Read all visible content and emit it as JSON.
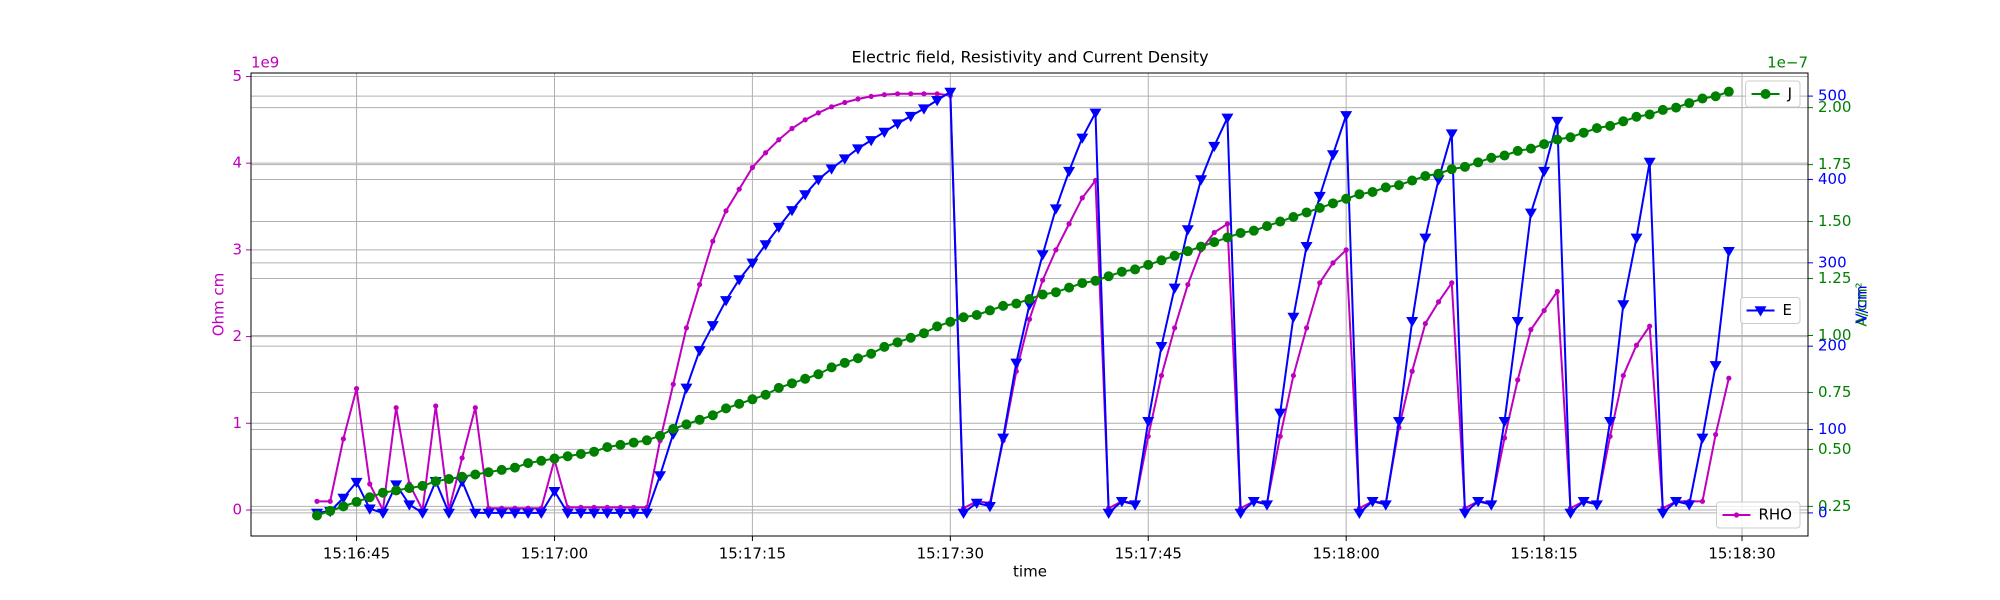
{
  "chart_data": {
    "type": "line",
    "title": "Electric field, Resistivity and Current Density",
    "xlabel": "time",
    "grid": true,
    "xlim": [
      "15:16:37",
      "15:18:35"
    ],
    "xticks": [
      "15:16:45",
      "15:17:00",
      "15:17:15",
      "15:17:30",
      "15:17:45",
      "15:18:00",
      "15:18:15",
      "15:18:30"
    ],
    "ylim": [
      -0.3,
      5.04
    ],
    "yticks": [
      0,
      1,
      2,
      3,
      4,
      5
    ],
    "ylabel": "Ohm cm",
    "y_offset_text": "1e9",
    "y2lim": [
      0.12,
      2.152
    ],
    "y2ticks": [
      0.25,
      {
        "value": 0.5,
        "label": "0.50"
      },
      0.75,
      {
        "value": 1,
        "label": "1.00"
      },
      1.25,
      {
        "value": 1.5,
        "label": "1.50"
      },
      1.75,
      {
        "value": 2,
        "label": "2.00"
      }
    ],
    "y2label": "A/cm²",
    "y2_offset_text": "1e−7",
    "y3lim": [
      -27.7,
      527.7
    ],
    "y3ticks": [
      0,
      100,
      200,
      300,
      400,
      500
    ],
    "y3label": "V/cm",
    "x": [
      "15:16:42",
      "15:16:43",
      "15:16:44",
      "15:16:45",
      "15:16:46",
      "15:16:47",
      "15:16:48",
      "15:16:49",
      "15:16:50",
      "15:16:51",
      "15:16:52",
      "15:16:53",
      "15:16:54",
      "15:16:55",
      "15:16:56",
      "15:16:57",
      "15:16:58",
      "15:16:59",
      "15:17:00",
      "15:17:01",
      "15:17:02",
      "15:17:03",
      "15:17:04",
      "15:17:05",
      "15:17:06",
      "15:17:07",
      "15:17:08",
      "15:17:09",
      "15:17:10",
      "15:17:11",
      "15:17:12",
      "15:17:13",
      "15:17:14",
      "15:17:15",
      "15:17:16",
      "15:17:17",
      "15:17:18",
      "15:17:19",
      "15:17:20",
      "15:17:21",
      "15:17:22",
      "15:17:23",
      "15:17:24",
      "15:17:25",
      "15:17:26",
      "15:17:27",
      "15:17:28",
      "15:17:29",
      "15:17:30",
      "15:17:31",
      "15:17:32",
      "15:17:33",
      "15:17:34",
      "15:17:35",
      "15:17:36",
      "15:17:37",
      "15:17:38",
      "15:17:39",
      "15:17:40",
      "15:17:41",
      "15:17:42",
      "15:17:43",
      "15:17:44",
      "15:17:45",
      "15:17:46",
      "15:17:47",
      "15:17:48",
      "15:17:49",
      "15:17:50",
      "15:17:51",
      "15:17:52",
      "15:17:53",
      "15:17:54",
      "15:17:55",
      "15:17:56",
      "15:17:57",
      "15:17:58",
      "15:17:59",
      "15:18:00",
      "15:18:01",
      "15:18:02",
      "15:18:03",
      "15:18:04",
      "15:18:05",
      "15:18:06",
      "15:18:07",
      "15:18:08",
      "15:18:09",
      "15:18:10",
      "15:18:11",
      "15:18:12",
      "15:18:13",
      "15:18:14",
      "15:18:15",
      "15:18:16",
      "15:18:17",
      "15:18:18",
      "15:18:19",
      "15:18:20",
      "15:18:21",
      "15:18:22",
      "15:18:23",
      "15:18:24",
      "15:18:25",
      "15:18:26",
      "15:18:27",
      "15:18:28",
      "15:18:29"
    ],
    "series": [
      {
        "name": "RHO",
        "color": "#bf00bf",
        "marker": "point",
        "axis": "y",
        "legend_loc": "lower right",
        "values": [
          0.1,
          0.1,
          0.82,
          1.4,
          0.3,
          0.0,
          1.18,
          0.3,
          0.0,
          1.2,
          0.0,
          0.6,
          1.18,
          0.02,
          0.02,
          0.02,
          0.02,
          0.02,
          0.58,
          0.03,
          0.03,
          0.03,
          0.03,
          0.03,
          0.03,
          0.03,
          0.8,
          1.45,
          2.1,
          2.6,
          3.1,
          3.45,
          3.7,
          3.95,
          4.12,
          4.27,
          4.4,
          4.5,
          4.58,
          4.65,
          4.7,
          4.74,
          4.77,
          4.79,
          4.8,
          4.8,
          4.8,
          4.8,
          4.78,
          0.02,
          0.1,
          0.08,
          0.8,
          1.6,
          2.2,
          2.65,
          3.0,
          3.3,
          3.6,
          3.8,
          0.02,
          0.1,
          0.08,
          0.85,
          1.55,
          2.1,
          2.6,
          3.0,
          3.2,
          3.3,
          0.02,
          0.1,
          0.08,
          0.85,
          1.55,
          2.1,
          2.62,
          2.85,
          3.0,
          0.02,
          0.1,
          0.08,
          0.95,
          1.6,
          2.15,
          2.4,
          2.62,
          0.02,
          0.1,
          0.08,
          0.83,
          1.5,
          2.08,
          2.3,
          2.52,
          0.02,
          0.1,
          0.08,
          0.85,
          1.55,
          1.9,
          2.12,
          0.02,
          0.1,
          0.1,
          0.1,
          0.87,
          1.52
        ]
      },
      {
        "name": "E",
        "color": "#0000ff",
        "marker": "triangle_down",
        "axis": "y3",
        "legend_loc": "center right",
        "values": [
          0,
          2,
          18,
          37,
          5,
          0,
          34,
          10,
          0,
          38,
          0,
          38,
          0,
          0,
          0,
          0,
          0,
          0,
          26,
          0,
          0,
          0,
          0,
          0,
          0,
          0,
          45,
          95,
          150,
          195,
          225,
          255,
          280,
          300,
          322,
          343,
          363,
          382,
          400,
          413,
          425,
          437,
          447,
          457,
          467,
          476,
          485,
          495,
          505,
          0,
          12,
          8,
          90,
          180,
          250,
          310,
          365,
          410,
          450,
          480,
          0,
          14,
          10,
          110,
          200,
          270,
          340,
          400,
          440,
          474,
          0,
          14,
          10,
          120,
          235,
          320,
          380,
          430,
          477,
          0,
          14,
          10,
          110,
          230,
          330,
          400,
          455,
          0,
          14,
          10,
          110,
          230,
          360,
          410,
          470,
          0,
          14,
          10,
          110,
          250,
          330,
          421,
          0,
          14,
          10,
          90,
          177,
          314
        ]
      },
      {
        "name": "J",
        "color": "#008000",
        "marker": "circle",
        "axis": "y2",
        "legend_loc": "upper right",
        "values": [
          0.21,
          0.23,
          0.25,
          0.27,
          0.29,
          0.31,
          0.32,
          0.33,
          0.34,
          0.36,
          0.37,
          0.38,
          0.39,
          0.4,
          0.41,
          0.42,
          0.44,
          0.45,
          0.46,
          0.47,
          0.48,
          0.49,
          0.51,
          0.52,
          0.53,
          0.54,
          0.56,
          0.59,
          0.61,
          0.63,
          0.65,
          0.68,
          0.7,
          0.72,
          0.74,
          0.77,
          0.79,
          0.81,
          0.83,
          0.86,
          0.88,
          0.9,
          0.92,
          0.95,
          0.97,
          0.99,
          1.01,
          1.04,
          1.06,
          1.08,
          1.09,
          1.11,
          1.13,
          1.14,
          1.16,
          1.18,
          1.19,
          1.21,
          1.23,
          1.24,
          1.26,
          1.28,
          1.29,
          1.31,
          1.33,
          1.35,
          1.37,
          1.39,
          1.41,
          1.43,
          1.45,
          1.46,
          1.48,
          1.5,
          1.52,
          1.54,
          1.56,
          1.58,
          1.6,
          1.62,
          1.63,
          1.65,
          1.66,
          1.68,
          1.7,
          1.71,
          1.73,
          1.74,
          1.76,
          1.78,
          1.79,
          1.81,
          1.82,
          1.84,
          1.86,
          1.87,
          1.89,
          1.91,
          1.92,
          1.94,
          1.96,
          1.97,
          1.99,
          2.0,
          2.02,
          2.04,
          2.05,
          2.07
        ]
      }
    ]
  }
}
